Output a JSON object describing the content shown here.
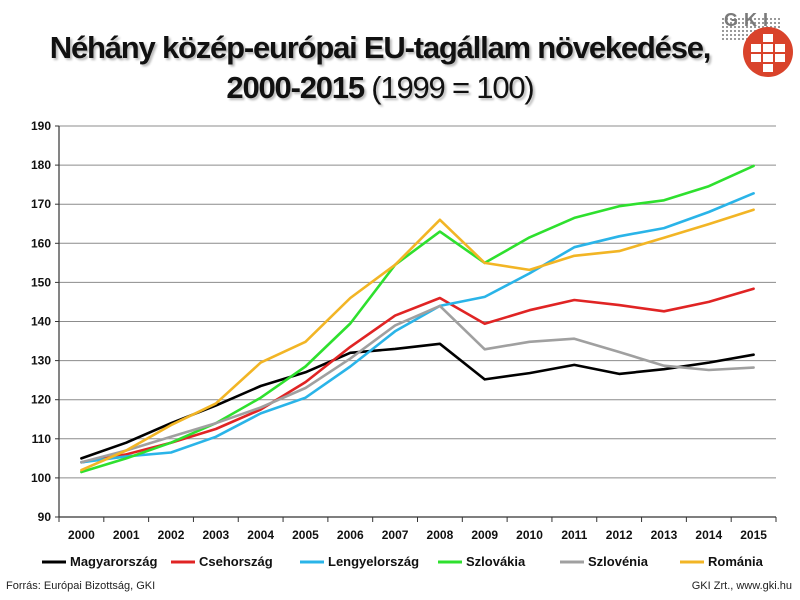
{
  "title": {
    "line1": "Néhány közép-európai EU-tagállam növekedése,",
    "line2_bold": "2000-2015",
    "line2_normal": "(1999 = 100)"
  },
  "logo": {
    "text": "GKI",
    "primary_color": "#d9432b"
  },
  "footer": {
    "source": "Forrás: Európai Bizottság, GKI",
    "credit": "GKI Zrt., www.gki.hu"
  },
  "chart_data": {
    "type": "line",
    "x": [
      "2000",
      "2001",
      "2002",
      "2003",
      "2004",
      "2005",
      "2006",
      "2007",
      "2008",
      "2009",
      "2010",
      "2011",
      "2012",
      "2013",
      "2014",
      "2015"
    ],
    "ylim": [
      90,
      190
    ],
    "yticks": [
      90,
      100,
      110,
      120,
      130,
      140,
      150,
      160,
      170,
      180,
      190
    ],
    "grid": true,
    "legend_position": "bottom",
    "series": [
      {
        "name": "Magyarország",
        "color": "#000000",
        "values": [
          105,
          109,
          114,
          118.5,
          123.5,
          127,
          132,
          133,
          134.3,
          125.2,
          126.8,
          128.9,
          126.6,
          127.8,
          129.5,
          131.5
        ]
      },
      {
        "name": "Csehország",
        "color": "#e02424",
        "values": [
          104,
          106,
          109,
          112.5,
          117.5,
          124.5,
          133.5,
          141.5,
          146,
          139.4,
          142.9,
          145.5,
          144.2,
          142.6,
          145,
          148.4
        ]
      },
      {
        "name": "Lengyelország",
        "color": "#2ab4e8",
        "values": [
          104,
          105.5,
          106.5,
          110.5,
          116.5,
          120.5,
          128.5,
          137.5,
          144,
          146.3,
          152.3,
          159,
          161.8,
          163.9,
          168,
          172.8
        ]
      },
      {
        "name": "Szlovákia",
        "color": "#2ee02e",
        "values": [
          101.5,
          105,
          109,
          114,
          120.5,
          128.5,
          139.5,
          154.5,
          163,
          155,
          161.5,
          166.5,
          169.5,
          171,
          174.6,
          179.8
        ]
      },
      {
        "name": "Szlovénia",
        "color": "#a0a0a0",
        "values": [
          104,
          107,
          110.5,
          114,
          118,
          123,
          130.5,
          139,
          144,
          132.9,
          134.8,
          135.6,
          132.2,
          128.7,
          127.6,
          128.2
        ]
      },
      {
        "name": "Románia",
        "color": "#f2b525",
        "values": [
          102,
          107,
          113.5,
          119,
          129.5,
          134.8,
          146,
          154.5,
          166,
          155,
          153.2,
          156.8,
          158,
          161.4,
          164.9,
          168.6
        ]
      }
    ]
  }
}
